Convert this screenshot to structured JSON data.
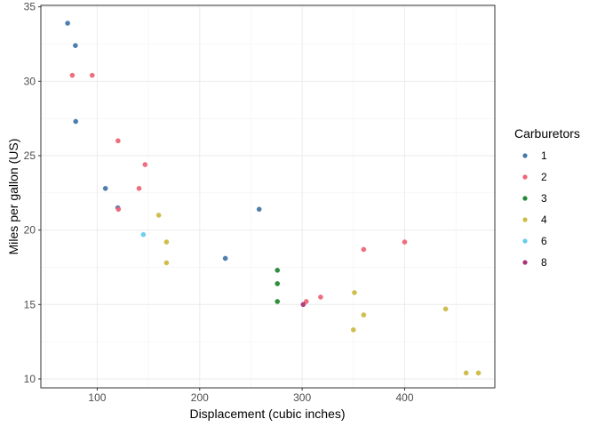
{
  "chart_data": {
    "type": "scatter",
    "xlabel": "Displacement (cubic inches)",
    "ylabel": "Miles per gallon (US)",
    "xlim": [
      45,
      488
    ],
    "ylim": [
      9.4,
      35.1
    ],
    "x_ticks": [
      100,
      200,
      300,
      400
    ],
    "y_ticks": [
      10,
      15,
      20,
      25,
      30,
      35
    ],
    "grid": true,
    "legend": {
      "title": "Carburetors",
      "placement": "right"
    },
    "series": [
      {
        "name": "1",
        "color": "#4477AA",
        "points": [
          [
            71.1,
            33.9
          ],
          [
            78.7,
            32.4
          ],
          [
            79.0,
            27.3
          ],
          [
            108.0,
            22.8
          ],
          [
            120.1,
            21.5
          ],
          [
            225.0,
            18.1
          ],
          [
            258.0,
            21.4
          ]
        ]
      },
      {
        "name": "2",
        "color": "#EE6677",
        "points": [
          [
            75.7,
            30.4
          ],
          [
            95.1,
            30.4
          ],
          [
            120.3,
            26.0
          ],
          [
            120.7,
            21.4
          ],
          [
            140.8,
            22.8
          ],
          [
            146.7,
            24.4
          ],
          [
            304.0,
            15.2
          ],
          [
            318.0,
            15.5
          ],
          [
            360.0,
            18.7
          ],
          [
            400.0,
            19.2
          ]
        ]
      },
      {
        "name": "3",
        "color": "#228833",
        "points": [
          [
            275.8,
            16.4
          ],
          [
            275.8,
            17.3
          ],
          [
            275.8,
            15.2
          ]
        ]
      },
      {
        "name": "4",
        "color": "#CCBB44",
        "points": [
          [
            160.0,
            21.0
          ],
          [
            167.6,
            19.2
          ],
          [
            167.6,
            17.8
          ],
          [
            350.0,
            13.3
          ],
          [
            351.0,
            15.8
          ],
          [
            360.0,
            14.3
          ],
          [
            440.0,
            14.7
          ],
          [
            460.0,
            10.4
          ],
          [
            472.0,
            10.4
          ]
        ]
      },
      {
        "name": "6",
        "color": "#66CCEE",
        "points": [
          [
            145.0,
            19.7
          ]
        ]
      },
      {
        "name": "8",
        "color": "#AA3377",
        "points": [
          [
            301.0,
            15.0
          ]
        ]
      }
    ]
  }
}
